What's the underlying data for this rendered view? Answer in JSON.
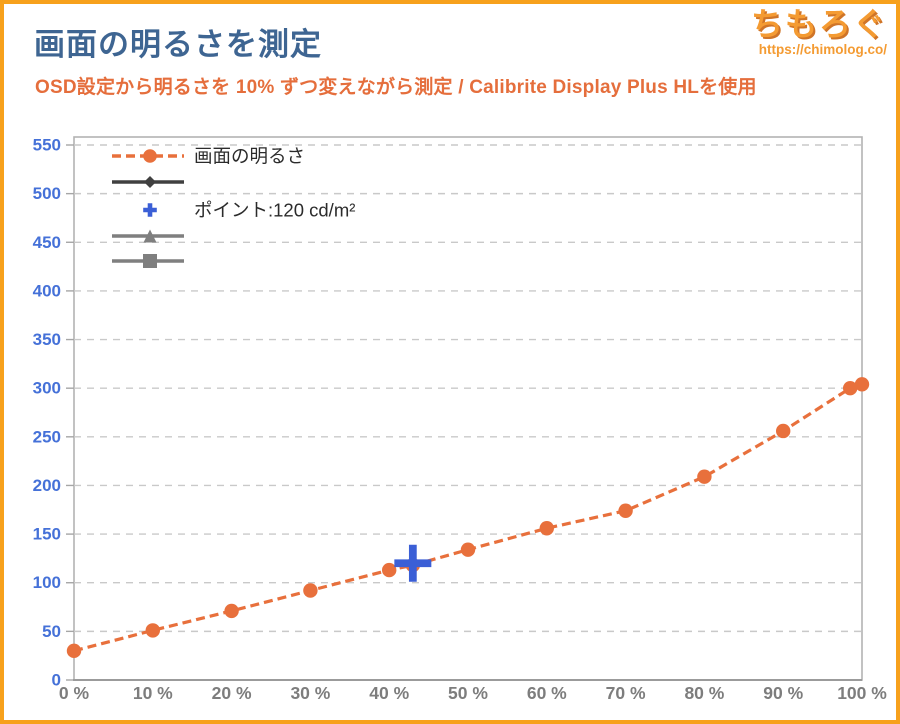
{
  "header": {
    "title": "画面の明るさを測定",
    "subtitle": "OSD設定から明るさを 10% ずつ変えながら測定 / Calibrite Display Plus HLを使用",
    "logo": {
      "text": "ちもろぐ",
      "url": "https://chimolog.co/"
    }
  },
  "colors": {
    "frame_orange": "#F7A11C",
    "title_blue": "#3E6592",
    "subtitle_orange": "#E56E3C",
    "series_orange": "#E8703C",
    "point_blue": "#3B5FD6",
    "y_label_blue": "#4571D8",
    "x_label_gray": "#7D7D7D",
    "grid_gray": "#C9C9C9",
    "plot_border_gray": "#B3B3B3",
    "axis_gray": "#9B9B9B",
    "legend_text": "#2B2B2B",
    "legend_dark": "#404040",
    "legend_gray": "#7F7F7F"
  },
  "chart_data": {
    "type": "line",
    "title": "画面の明るさを測定",
    "xlabel": "",
    "ylabel": "",
    "xlim": [
      0,
      100
    ],
    "ylim": [
      0,
      550
    ],
    "grid": "horizontal-dashed",
    "x_tick_values": [
      0,
      10,
      20,
      30,
      40,
      50,
      60,
      70,
      80,
      90,
      100
    ],
    "x_ticks": [
      "0 %",
      "10 %",
      "20 %",
      "30 %",
      "40 %",
      "50 %",
      "60 %",
      "70 %",
      "80 %",
      "90 %",
      "100 %"
    ],
    "y_ticks": [
      0,
      50,
      100,
      150,
      200,
      250,
      300,
      350,
      400,
      450,
      500,
      550
    ],
    "series": [
      {
        "name": "画面の明るさ",
        "color": "#E8703C",
        "line": "dashed",
        "marker": "circle",
        "points": [
          [
            0,
            30
          ],
          [
            10,
            51
          ],
          [
            20,
            71
          ],
          [
            30,
            92
          ],
          [
            40,
            113
          ],
          [
            43,
            118
          ],
          [
            50,
            134
          ],
          [
            60,
            156
          ],
          [
            70,
            174
          ],
          [
            80,
            209
          ],
          [
            90,
            256
          ],
          [
            98.5,
            300
          ],
          [
            100,
            304
          ]
        ]
      },
      {
        "name": "ポイント:120 cd/m²",
        "color": "#3B5FD6",
        "line": "none",
        "marker": "plus",
        "points": [
          [
            43,
            120
          ]
        ]
      }
    ],
    "legend": {
      "position": "top-left",
      "entries": [
        {
          "label": "画面の明るさ",
          "marker": "circle",
          "line": "dashed",
          "color": "#E8703C"
        },
        {
          "label": "",
          "marker": "diamond",
          "line": "solid",
          "color": "#404040"
        },
        {
          "label": "ポイント:120 cd/m²",
          "marker": "plus",
          "line": "none",
          "color": "#3B5FD6"
        },
        {
          "label": "",
          "marker": "triangle",
          "line": "solid",
          "color": "#7F7F7F"
        },
        {
          "label": "",
          "marker": "square",
          "line": "solid",
          "color": "#7F7F7F"
        }
      ]
    }
  }
}
